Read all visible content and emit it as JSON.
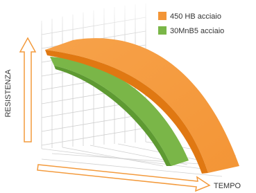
{
  "legend": [
    {
      "label": "450 HB acciaio"
    },
    {
      "label": "30MnB5 acciaio"
    }
  ],
  "axes": {
    "x_label": "TEMPO",
    "y_label": "RESISTENZA"
  }
}
